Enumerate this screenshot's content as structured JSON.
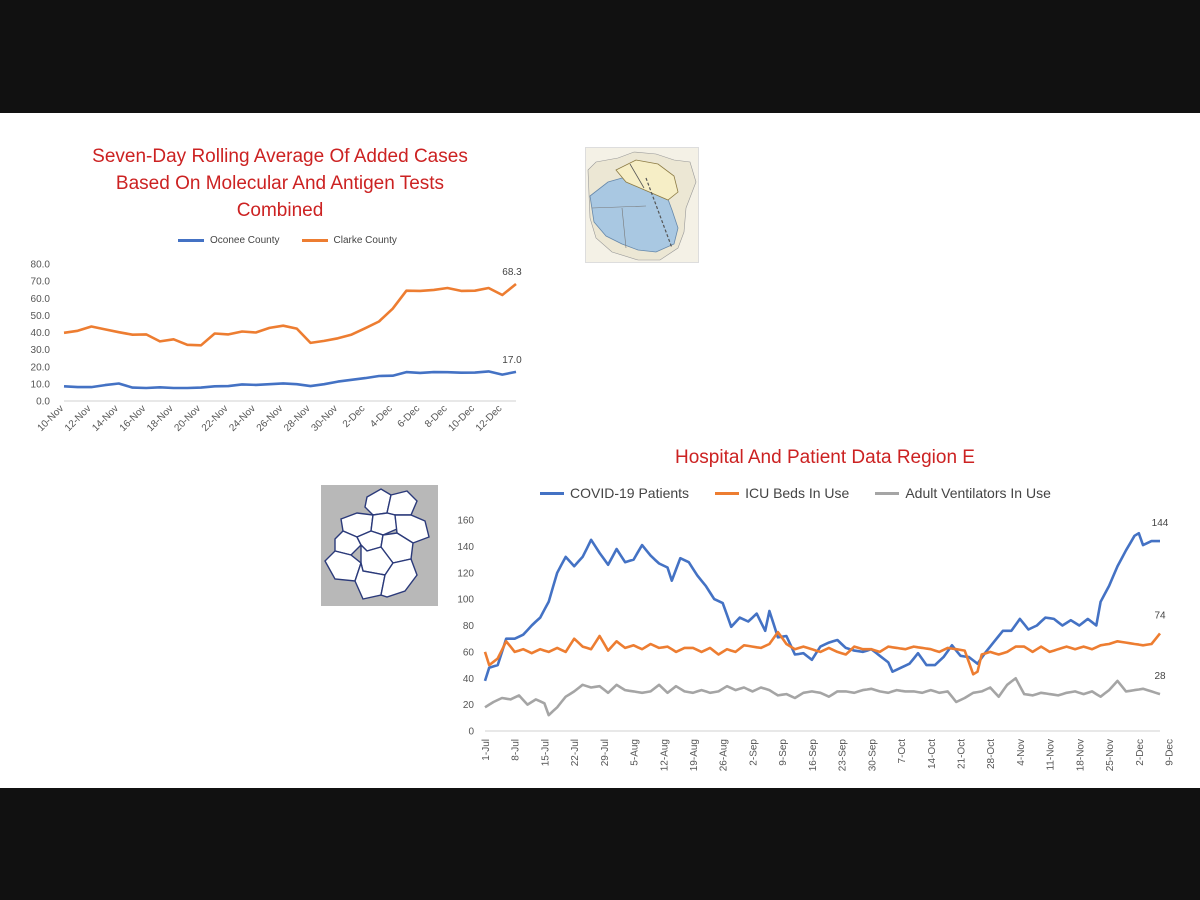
{
  "colors": {
    "blue": "#4472c4",
    "orange": "#ed7d31",
    "gray": "#a5a5a5",
    "title_red": "#cc2222"
  },
  "chart_data": [
    {
      "type": "line",
      "title": "Seven-Day Rolling Average Of  Added Cases Based On Molecular And Antigen Tests Combined",
      "title_lines": [
        "Seven-Day Rolling Average Of  Added Cases",
        "Based On Molecular And Antigen Tests",
        "Combined"
      ],
      "legend": "top",
      "ylim": [
        0,
        80
      ],
      "yticks": [
        "0.0",
        "10.0",
        "20.0",
        "30.0",
        "40.0",
        "50.0",
        "60.0",
        "70.0",
        "80.0"
      ],
      "x_tick_labels": [
        "10-Nov",
        "12-Nov",
        "14-Nov",
        "16-Nov",
        "18-Nov",
        "20-Nov",
        "22-Nov",
        "24-Nov",
        "26-Nov",
        "28-Nov",
        "30-Nov",
        "2-Dec",
        "4-Dec",
        "6-Dec",
        "8-Dec",
        "10-Dec",
        "12-Dec"
      ],
      "series": [
        {
          "name": "Oconee County",
          "color": "#4472c4",
          "values": [
            8.6,
            8.1,
            8.1,
            9.3,
            10.2,
            7.8,
            7.6,
            8.0,
            7.6,
            7.6,
            7.8,
            8.6,
            8.7,
            9.7,
            9.4,
            9.8,
            10.3,
            9.8,
            8.7,
            9.8,
            11.3,
            12.4,
            13.4,
            14.6,
            14.8,
            16.9,
            16.4,
            16.9,
            16.8,
            16.5,
            16.6,
            17.3,
            15.4,
            17.0
          ],
          "end_label": "17.0"
        },
        {
          "name": "Clarke County",
          "color": "#ed7d31",
          "values": [
            39.8,
            41.0,
            43.5,
            41.8,
            40.2,
            38.7,
            38.9,
            34.8,
            36.0,
            32.8,
            32.5,
            39.4,
            38.9,
            40.6,
            40.0,
            42.7,
            44.0,
            42.3,
            33.9,
            35.1,
            36.6,
            38.8,
            42.5,
            46.4,
            53.9,
            64.4,
            64.3,
            64.9,
            66.0,
            64.3,
            64.4,
            66.0,
            61.9,
            68.3
          ],
          "end_label": "68.3"
        }
      ]
    },
    {
      "type": "line",
      "title": "Hospital And Patient Data Region E",
      "legend": "top",
      "ylim": [
        0,
        160
      ],
      "yticks": [
        "0",
        "20",
        "40",
        "60",
        "80",
        "100",
        "120",
        "140",
        "160"
      ],
      "x_tick_labels": [
        "1-Jul",
        "8-Jul",
        "15-Jul",
        "22-Jul",
        "29-Jul",
        "5-Aug",
        "12-Aug",
        "19-Aug",
        "26-Aug",
        "2-Sep",
        "9-Sep",
        "16-Sep",
        "23-Sep",
        "30-Sep",
        "7-Oct",
        "14-Oct",
        "21-Oct",
        "28-Oct",
        "4-Nov",
        "11-Nov",
        "18-Nov",
        "25-Nov",
        "2-Dec",
        "9-Dec"
      ],
      "series": [
        {
          "name": "COVID-19 Patients",
          "color": "#4472c4",
          "anchors": [
            [
              0,
              38
            ],
            [
              1,
              48
            ],
            [
              3,
              50
            ],
            [
              5,
              70
            ],
            [
              7,
              70
            ],
            [
              9,
              73
            ],
            [
              11,
              80
            ],
            [
              13,
              86
            ],
            [
              15,
              98
            ],
            [
              17,
              120
            ],
            [
              19,
              132
            ],
            [
              21,
              125
            ],
            [
              23,
              132
            ],
            [
              25,
              145
            ],
            [
              27,
              135
            ],
            [
              29,
              126
            ],
            [
              31,
              138
            ],
            [
              33,
              128
            ],
            [
              35,
              130
            ],
            [
              37,
              141
            ],
            [
              39,
              133
            ],
            [
              41,
              127
            ],
            [
              43,
              124
            ],
            [
              44,
              114
            ],
            [
              46,
              131
            ],
            [
              48,
              128
            ],
            [
              50,
              118
            ],
            [
              52,
              110
            ],
            [
              54,
              100
            ],
            [
              56,
              97
            ],
            [
              58,
              79
            ],
            [
              60,
              86
            ],
            [
              62,
              83
            ],
            [
              64,
              89
            ],
            [
              66,
              76
            ],
            [
              67,
              91
            ],
            [
              69,
              71
            ],
            [
              71,
              72
            ],
            [
              73,
              58
            ],
            [
              75,
              59
            ],
            [
              77,
              54
            ],
            [
              79,
              64
            ],
            [
              81,
              67
            ],
            [
              83,
              69
            ],
            [
              85,
              63
            ],
            [
              87,
              61
            ],
            [
              89,
              60
            ],
            [
              91,
              62
            ],
            [
              93,
              57
            ],
            [
              95,
              52
            ],
            [
              96,
              45
            ],
            [
              98,
              48
            ],
            [
              100,
              51
            ],
            [
              102,
              59
            ],
            [
              104,
              50
            ],
            [
              106,
              50
            ],
            [
              108,
              56
            ],
            [
              110,
              65
            ],
            [
              112,
              57
            ],
            [
              114,
              56
            ],
            [
              116,
              51
            ],
            [
              118,
              60
            ],
            [
              120,
              68
            ],
            [
              122,
              76
            ],
            [
              124,
              76
            ],
            [
              126,
              85
            ],
            [
              128,
              77
            ],
            [
              130,
              80
            ],
            [
              132,
              86
            ],
            [
              134,
              85
            ],
            [
              136,
              80
            ],
            [
              138,
              84
            ],
            [
              140,
              80
            ],
            [
              142,
              85
            ],
            [
              144,
              80
            ],
            [
              145,
              98
            ],
            [
              147,
              110
            ],
            [
              149,
              125
            ],
            [
              151,
              137
            ],
            [
              153,
              148
            ],
            [
              154,
              150
            ],
            [
              155,
              141
            ],
            [
              157,
              144
            ],
            [
              159,
              144
            ]
          ],
          "end_label": "144"
        },
        {
          "name": "ICU Beds In Use",
          "color": "#ed7d31",
          "anchors": [
            [
              0,
              60
            ],
            [
              1,
              50
            ],
            [
              3,
              55
            ],
            [
              5,
              68
            ],
            [
              7,
              60
            ],
            [
              9,
              62
            ],
            [
              11,
              59
            ],
            [
              13,
              62
            ],
            [
              15,
              60
            ],
            [
              17,
              63
            ],
            [
              19,
              60
            ],
            [
              21,
              70
            ],
            [
              23,
              64
            ],
            [
              25,
              62
            ],
            [
              27,
              72
            ],
            [
              29,
              61
            ],
            [
              31,
              68
            ],
            [
              33,
              63
            ],
            [
              35,
              65
            ],
            [
              37,
              62
            ],
            [
              39,
              66
            ],
            [
              41,
              63
            ],
            [
              43,
              64
            ],
            [
              45,
              60
            ],
            [
              47,
              63
            ],
            [
              49,
              63
            ],
            [
              51,
              60
            ],
            [
              53,
              63
            ],
            [
              55,
              58
            ],
            [
              57,
              62
            ],
            [
              59,
              60
            ],
            [
              61,
              65
            ],
            [
              63,
              64
            ],
            [
              65,
              63
            ],
            [
              67,
              66
            ],
            [
              69,
              75
            ],
            [
              71,
              66
            ],
            [
              73,
              62
            ],
            [
              75,
              64
            ],
            [
              77,
              62
            ],
            [
              79,
              60
            ],
            [
              81,
              63
            ],
            [
              83,
              60
            ],
            [
              85,
              58
            ],
            [
              87,
              64
            ],
            [
              89,
              62
            ],
            [
              91,
              62
            ],
            [
              93,
              60
            ],
            [
              95,
              64
            ],
            [
              97,
              63
            ],
            [
              99,
              62
            ],
            [
              101,
              64
            ],
            [
              103,
              63
            ],
            [
              105,
              62
            ],
            [
              107,
              60
            ],
            [
              109,
              63
            ],
            [
              111,
              62
            ],
            [
              113,
              61
            ],
            [
              115,
              43
            ],
            [
              116,
              45
            ],
            [
              117,
              58
            ],
            [
              119,
              60
            ],
            [
              121,
              58
            ],
            [
              123,
              60
            ],
            [
              125,
              64
            ],
            [
              127,
              64
            ],
            [
              129,
              60
            ],
            [
              131,
              64
            ],
            [
              133,
              60
            ],
            [
              135,
              62
            ],
            [
              137,
              64
            ],
            [
              139,
              62
            ],
            [
              141,
              64
            ],
            [
              143,
              62
            ],
            [
              145,
              65
            ],
            [
              147,
              66
            ],
            [
              149,
              68
            ],
            [
              151,
              67
            ],
            [
              153,
              66
            ],
            [
              155,
              65
            ],
            [
              157,
              66
            ],
            [
              158,
              70
            ],
            [
              159,
              74
            ]
          ],
          "end_label": "74"
        },
        {
          "name": "Adult Ventilators In Use",
          "color": "#a5a5a5",
          "anchors": [
            [
              0,
              18
            ],
            [
              2,
              22
            ],
            [
              4,
              25
            ],
            [
              6,
              24
            ],
            [
              8,
              27
            ],
            [
              10,
              20
            ],
            [
              12,
              24
            ],
            [
              14,
              21
            ],
            [
              15,
              12
            ],
            [
              17,
              18
            ],
            [
              19,
              26
            ],
            [
              21,
              30
            ],
            [
              23,
              35
            ],
            [
              25,
              33
            ],
            [
              27,
              34
            ],
            [
              29,
              29
            ],
            [
              31,
              35
            ],
            [
              33,
              31
            ],
            [
              35,
              30
            ],
            [
              37,
              29
            ],
            [
              39,
              30
            ],
            [
              41,
              35
            ],
            [
              43,
              29
            ],
            [
              45,
              34
            ],
            [
              47,
              30
            ],
            [
              49,
              29
            ],
            [
              51,
              31
            ],
            [
              53,
              29
            ],
            [
              55,
              30
            ],
            [
              57,
              34
            ],
            [
              59,
              31
            ],
            [
              61,
              33
            ],
            [
              63,
              30
            ],
            [
              65,
              33
            ],
            [
              67,
              31
            ],
            [
              69,
              27
            ],
            [
              71,
              28
            ],
            [
              73,
              25
            ],
            [
              75,
              29
            ],
            [
              77,
              30
            ],
            [
              79,
              29
            ],
            [
              81,
              26
            ],
            [
              83,
              30
            ],
            [
              85,
              30
            ],
            [
              87,
              29
            ],
            [
              89,
              31
            ],
            [
              91,
              32
            ],
            [
              93,
              30
            ],
            [
              95,
              29
            ],
            [
              97,
              31
            ],
            [
              99,
              30
            ],
            [
              101,
              30
            ],
            [
              103,
              29
            ],
            [
              105,
              31
            ],
            [
              107,
              29
            ],
            [
              109,
              30
            ],
            [
              111,
              22
            ],
            [
              113,
              25
            ],
            [
              115,
              29
            ],
            [
              117,
              30
            ],
            [
              119,
              33
            ],
            [
              121,
              26
            ],
            [
              123,
              35
            ],
            [
              125,
              40
            ],
            [
              127,
              28
            ],
            [
              129,
              27
            ],
            [
              131,
              29
            ],
            [
              133,
              28
            ],
            [
              135,
              27
            ],
            [
              137,
              29
            ],
            [
              139,
              30
            ],
            [
              141,
              28
            ],
            [
              143,
              30
            ],
            [
              145,
              26
            ],
            [
              147,
              31
            ],
            [
              149,
              38
            ],
            [
              151,
              30
            ],
            [
              153,
              31
            ],
            [
              155,
              32
            ],
            [
              157,
              30
            ],
            [
              159,
              28
            ]
          ],
          "end_label": "28"
        }
      ]
    }
  ]
}
